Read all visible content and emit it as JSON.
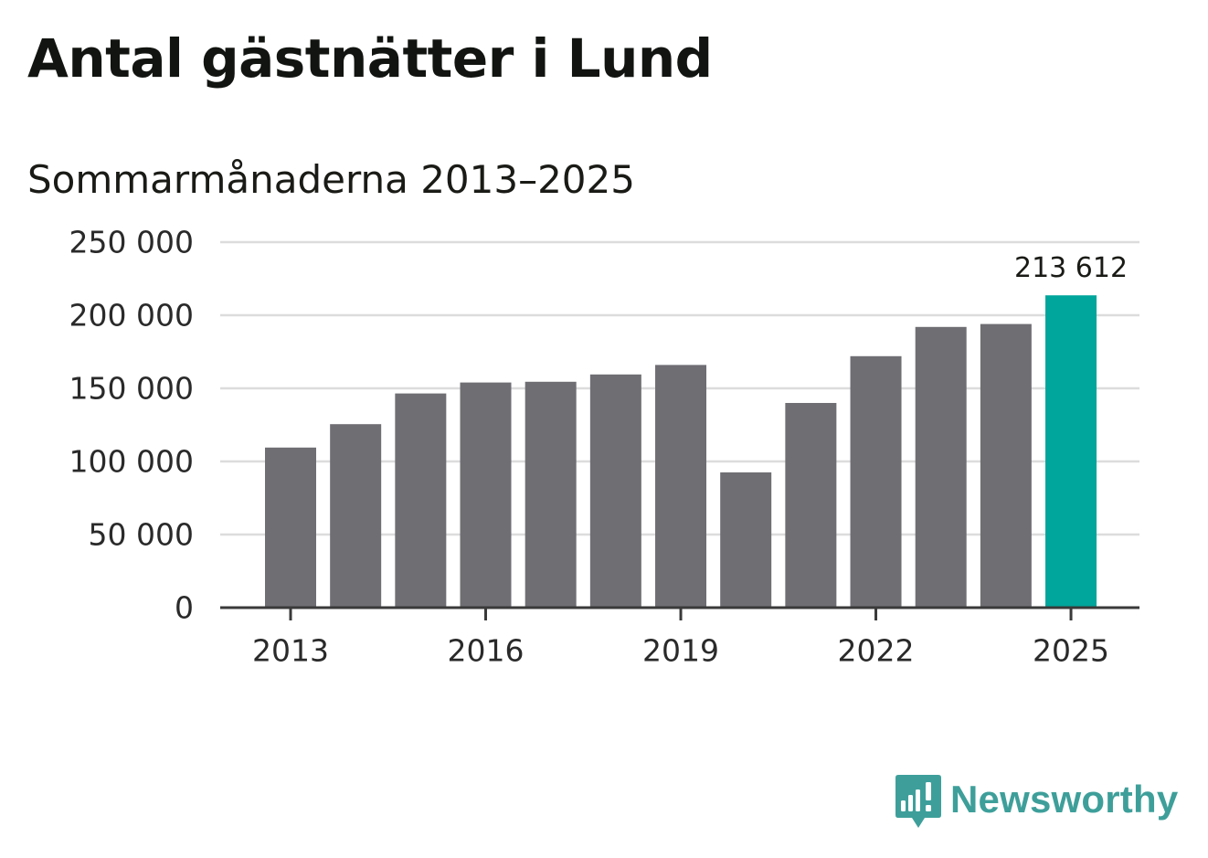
{
  "title": "Antal gästnätter i Lund",
  "subtitle": "Sommarmånaderna 2013–2025",
  "brand": {
    "name": "Newsworthy",
    "color": "#3e9f9a",
    "icon": "newsworthy-logo-icon"
  },
  "colors": {
    "bar": "#6f6e73",
    "highlight": "#00a59b",
    "grid": "#dcdcdc",
    "axis": "#3a3a3a",
    "text": "#2a2a2a"
  },
  "chart_data": {
    "type": "bar",
    "title": "Antal gästnätter i Lund",
    "subtitle": "Sommarmånaderna 2013–2025",
    "xlabel": "",
    "ylabel": "",
    "categories": [
      "2013",
      "2014",
      "2015",
      "2016",
      "2017",
      "2018",
      "2019",
      "2020",
      "2021",
      "2022",
      "2023",
      "2024",
      "2025"
    ],
    "values": [
      109500,
      125500,
      146500,
      154000,
      154500,
      159500,
      166000,
      92500,
      140000,
      172000,
      192000,
      194000,
      213612
    ],
    "highlight_index": 12,
    "data_labels": [
      {
        "index": 12,
        "text": "213 612"
      }
    ],
    "x_tick_labels": [
      "2013",
      "2016",
      "2019",
      "2022",
      "2025"
    ],
    "y_ticks": [
      0,
      50000,
      100000,
      150000,
      200000,
      250000
    ],
    "y_tick_labels": [
      "0",
      "50 000",
      "100 000",
      "150 000",
      "200 000",
      "250 000"
    ],
    "ylim": [
      0,
      250000
    ],
    "grid": true,
    "legend": "none"
  }
}
